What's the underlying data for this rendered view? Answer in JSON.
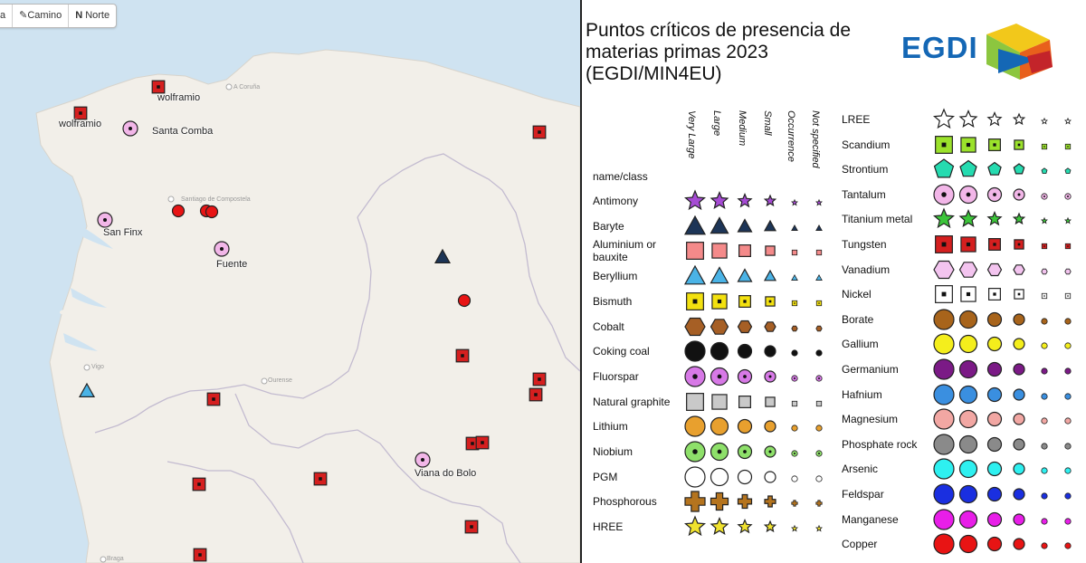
{
  "toolbar": {
    "item0": "a",
    "camino_icon": "pencil-icon",
    "camino": "Camino",
    "norte_key": "N",
    "norte": "Norte"
  },
  "map": {
    "labels": {
      "wolframio_top": "wolframio",
      "wolframio_left": "wolframio",
      "santa_comba": "Santa Comba",
      "san_finx": "San Finx",
      "fuente": "Fuente",
      "viana": "Viana do Bolo"
    },
    "towns": {
      "acoruna": "A Coruña",
      "santiago": "Santiago de Compostela",
      "ourense": "Ourense",
      "vigo": "Vigo",
      "braga": "Braga"
    }
  },
  "legend": {
    "title": "Puntos críticos de presencia de materias primas 2023 (EGDI/MIN4EU)",
    "logo": "EGDI",
    "name_header": "name/class",
    "size_headers": [
      "Very Large",
      "Large",
      "Medium",
      "Small",
      "Occurrence",
      "Not specified"
    ],
    "left": [
      {
        "name": "Antimony",
        "shape": "star",
        "color": "#a64bd4"
      },
      {
        "name": "Baryte",
        "shape": "triangle",
        "color": "#1d3557"
      },
      {
        "name": "Aluminium or bauxite",
        "shape": "square",
        "color": "#f48a8a"
      },
      {
        "name": "Beryllium",
        "shape": "triangle",
        "color": "#4ab3e6"
      },
      {
        "name": "Bismuth",
        "shape": "square-dot",
        "color": "#f3e110"
      },
      {
        "name": "Cobalt",
        "shape": "hexagon",
        "color": "#a65f25"
      },
      {
        "name": "Coking coal",
        "shape": "circle",
        "color": "#111111"
      },
      {
        "name": "Fluorspar",
        "shape": "circle-dot",
        "color": "#d779e6"
      },
      {
        "name": "Natural graphite",
        "shape": "square",
        "color": "#c9c9c9"
      },
      {
        "name": "Lithium",
        "shape": "circle",
        "color": "#e8a02e"
      },
      {
        "name": "Niobium",
        "shape": "circle-dot",
        "color": "#8ee06a"
      },
      {
        "name": "PGM",
        "shape": "circle",
        "color": "#ffffff"
      },
      {
        "name": "Phosphorous",
        "shape": "cross",
        "color": "#b5741e"
      },
      {
        "name": "HREE",
        "shape": "star",
        "color": "#f0e22e"
      }
    ],
    "right": [
      {
        "name": "LREE",
        "shape": "star",
        "color": "#ffffff"
      },
      {
        "name": "Scandium",
        "shape": "square-dot",
        "color": "#9be22b"
      },
      {
        "name": "Strontium",
        "shape": "pentagon",
        "color": "#25dbb0"
      },
      {
        "name": "Tantalum",
        "shape": "circle-dot",
        "color": "#f2b6e8"
      },
      {
        "name": "Titanium metal",
        "shape": "star",
        "color": "#3cc53a"
      },
      {
        "name": "Tungsten",
        "shape": "square-dot",
        "color": "#d51f1f"
      },
      {
        "name": "Vanadium",
        "shape": "hexagon",
        "color": "#f3c4ef"
      },
      {
        "name": "Nickel",
        "shape": "square-dot",
        "color": "#ffffff"
      },
      {
        "name": "Borate",
        "shape": "circle",
        "color": "#a8641b"
      },
      {
        "name": "Gallium",
        "shape": "circle",
        "color": "#f4ee1c"
      },
      {
        "name": "Germanium",
        "shape": "circle",
        "color": "#7b1a86"
      },
      {
        "name": "Hafnium",
        "shape": "circle",
        "color": "#3a8fe0"
      },
      {
        "name": "Magnesium",
        "shape": "circle",
        "color": "#f2a7a3"
      },
      {
        "name": "Phosphate rock",
        "shape": "circle",
        "color": "#8a8a8a"
      },
      {
        "name": "Arsenic",
        "shape": "circle",
        "color": "#2ef0f0"
      },
      {
        "name": "Feldspar",
        "shape": "circle",
        "color": "#1a2fe0"
      },
      {
        "name": "Manganese",
        "shape": "circle",
        "color": "#e81ee8"
      },
      {
        "name": "Copper",
        "shape": "circle",
        "color": "#e81414"
      }
    ]
  }
}
